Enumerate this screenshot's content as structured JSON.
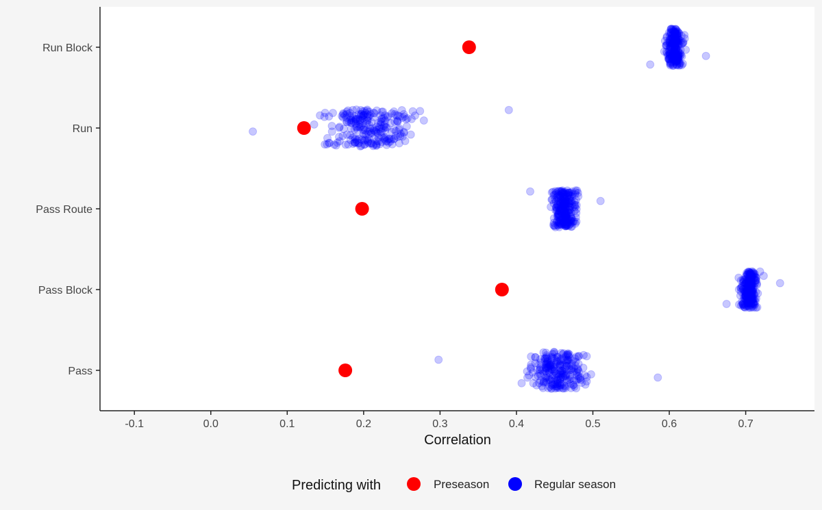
{
  "chart_data": {
    "type": "scatter",
    "xlabel": "Correlation",
    "ylabel": "",
    "xlim": [
      -0.145,
      0.79
    ],
    "x_ticks": [
      "-0.1",
      "0.0",
      "0.1",
      "0.2",
      "0.3",
      "0.4",
      "0.5",
      "0.6",
      "0.7"
    ],
    "x_tick_values": [
      -0.1,
      0.0,
      0.1,
      0.2,
      0.3,
      0.4,
      0.5,
      0.6,
      0.7
    ],
    "categories": [
      "Run Block",
      "Run",
      "Pass Route",
      "Pass Block",
      "Pass"
    ],
    "grid": false,
    "legend": {
      "title": "Predicting with",
      "placement": "bottom",
      "entries": [
        {
          "label": "Preseason",
          "color": "#ff0000"
        },
        {
          "label": "Regular season",
          "color": "#0000ff"
        }
      ]
    },
    "series": [
      {
        "name": "Preseason",
        "color": "#ff0000",
        "points": [
          {
            "category": "Run Block",
            "x": 0.338
          },
          {
            "category": "Run",
            "x": 0.122
          },
          {
            "category": "Pass Route",
            "x": 0.198
          },
          {
            "category": "Pass Block",
            "x": 0.381
          },
          {
            "category": "Pass",
            "x": 0.176
          }
        ]
      },
      {
        "name": "Regular season",
        "color": "#0000ff",
        "opacity": 0.22,
        "distributions": [
          {
            "category": "Run Block",
            "min": 0.575,
            "max": 0.648,
            "mean": 0.607,
            "spread": 0.014,
            "count": 220
          },
          {
            "category": "Run",
            "min": 0.055,
            "max": 0.39,
            "mean": 0.205,
            "spread": 0.075,
            "count": 240
          },
          {
            "category": "Pass Route",
            "min": 0.418,
            "max": 0.51,
            "mean": 0.463,
            "spread": 0.02,
            "count": 240
          },
          {
            "category": "Pass Block",
            "min": 0.675,
            "max": 0.745,
            "mean": 0.705,
            "spread": 0.014,
            "count": 240
          },
          {
            "category": "Pass",
            "min": 0.298,
            "max": 0.585,
            "mean": 0.455,
            "spread": 0.045,
            "count": 240
          }
        ]
      }
    ]
  }
}
